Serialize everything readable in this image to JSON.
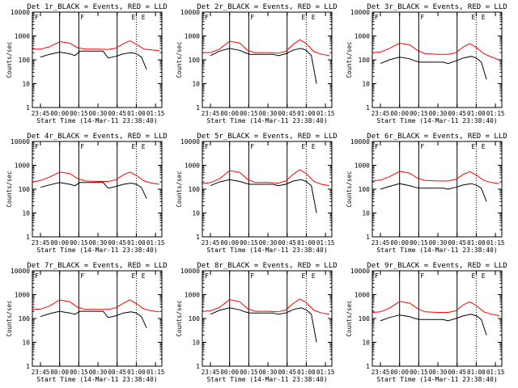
{
  "common": {
    "title_suffix": "_BLACK = Events, RED = LLD",
    "xlabel": "Start Time (14-Mar-11 23:38:40)",
    "ylabel": "Counts/sec",
    "x_ticks": [
      "23:45",
      "00:00",
      "00:15",
      "00:30",
      "00:45",
      "01:00",
      "01:15"
    ],
    "y_ticks": [
      "1",
      "10",
      "100",
      "1000",
      "10000"
    ],
    "marker_letters": [
      "F",
      "E"
    ],
    "colors": {
      "events": "#000000",
      "lld": "#ff0000"
    }
  },
  "chart_data": [
    {
      "type": "line",
      "title": "Det 1r_BLACK = Events, RED = LLD",
      "xlabel": "Start Time (14-Mar-11 23:38:40)",
      "ylabel": "Counts/sec",
      "xlim": [
        "23:38:40",
        "01:20:00"
      ],
      "ylim": [
        1,
        10000
      ],
      "yscale": "log",
      "series": [
        {
          "key": "events",
          "x": [
            "23:45",
            "23:52",
            "00:00",
            "00:08",
            "00:12",
            "00:16",
            "00:20",
            "00:30",
            "00:34",
            "00:38",
            "00:44",
            "00:50",
            "00:56",
            "01:00",
            "01:04",
            "01:08"
          ],
          "values": [
            130,
            170,
            210,
            180,
            150,
            230,
            230,
            230,
            230,
            120,
            140,
            180,
            200,
            180,
            130,
            40
          ]
        },
        {
          "key": "lld",
          "x": [
            "23:39",
            "23:45",
            "23:52",
            "00:00",
            "00:08",
            "00:14",
            "00:20",
            "00:30",
            "00:38",
            "00:44",
            "00:50",
            "00:55",
            "01:00",
            "01:06",
            "01:12",
            "01:18"
          ],
          "values": [
            280,
            280,
            350,
            580,
            500,
            320,
            280,
            280,
            270,
            310,
            480,
            620,
            450,
            280,
            260,
            240
          ]
        }
      ]
    },
    {
      "type": "line",
      "title": "Det 2r_BLACK = Events, RED = LLD",
      "xlabel": "Start Time (14-Mar-11 23:38:40)",
      "ylabel": "Counts/sec",
      "xlim": [
        "23:38:40",
        "01:20:00"
      ],
      "ylim": [
        1,
        10000
      ],
      "yscale": "log",
      "series": [
        {
          "key": "events",
          "x": [
            "23:45",
            "23:52",
            "00:00",
            "00:08",
            "00:12",
            "00:16",
            "00:20",
            "00:30",
            "00:34",
            "00:38",
            "00:44",
            "00:50",
            "00:56",
            "01:00",
            "01:04",
            "01:08"
          ],
          "values": [
            150,
            230,
            300,
            250,
            200,
            170,
            170,
            170,
            170,
            150,
            180,
            260,
            300,
            250,
            150,
            10
          ]
        },
        {
          "key": "lld",
          "x": [
            "23:39",
            "23:45",
            "23:52",
            "00:00",
            "00:08",
            "00:14",
            "00:20",
            "00:30",
            "00:38",
            "00:44",
            "00:50",
            "00:55",
            "01:00",
            "01:06",
            "01:12",
            "01:18"
          ],
          "values": [
            200,
            200,
            280,
            600,
            500,
            250,
            200,
            200,
            190,
            230,
            450,
            700,
            480,
            220,
            170,
            150
          ]
        }
      ]
    },
    {
      "type": "line",
      "title": "Det 3r_BLACK = Events, RED = LLD",
      "xlabel": "Start Time (14-Mar-11 23:38:40)",
      "ylabel": "Counts/sec",
      "xlim": [
        "23:38:40",
        "01:20:00"
      ],
      "ylim": [
        1,
        10000
      ],
      "yscale": "log",
      "series": [
        {
          "key": "events",
          "x": [
            "23:45",
            "23:52",
            "00:00",
            "00:08",
            "00:12",
            "00:16",
            "00:20",
            "00:30",
            "00:34",
            "00:38",
            "00:44",
            "00:50",
            "00:56",
            "01:00",
            "01:04",
            "01:08"
          ],
          "values": [
            70,
            100,
            130,
            110,
            90,
            80,
            80,
            80,
            80,
            70,
            90,
            120,
            140,
            120,
            80,
            15
          ]
        },
        {
          "key": "lld",
          "x": [
            "23:39",
            "23:45",
            "23:52",
            "00:00",
            "00:08",
            "00:14",
            "00:20",
            "00:30",
            "00:38",
            "00:44",
            "00:50",
            "00:55",
            "01:00",
            "01:06",
            "01:12",
            "01:18"
          ],
          "values": [
            200,
            210,
            300,
            500,
            420,
            250,
            180,
            170,
            170,
            200,
            350,
            480,
            330,
            180,
            130,
            100
          ]
        }
      ]
    },
    {
      "type": "line",
      "title": "Det 4r_BLACK = Events, RED = LLD",
      "xlabel": "Start Time (14-Mar-11 23:38:40)",
      "ylabel": "Counts/sec",
      "xlim": [
        "23:38:40",
        "01:20:00"
      ],
      "ylim": [
        1,
        10000
      ],
      "yscale": "log",
      "series": [
        {
          "key": "events",
          "x": [
            "23:45",
            "23:52",
            "00:00",
            "00:08",
            "00:12",
            "00:16",
            "00:20",
            "00:30",
            "00:34",
            "00:38",
            "00:44",
            "00:50",
            "00:56",
            "01:00",
            "01:04",
            "01:08"
          ],
          "values": [
            120,
            150,
            190,
            160,
            140,
            190,
            190,
            190,
            190,
            110,
            130,
            160,
            180,
            160,
            120,
            40
          ]
        },
        {
          "key": "lld",
          "x": [
            "23:39",
            "23:45",
            "23:52",
            "00:00",
            "00:08",
            "00:14",
            "00:20",
            "00:30",
            "00:38",
            "00:44",
            "00:50",
            "00:55",
            "01:00",
            "01:06",
            "01:12",
            "01:18"
          ],
          "values": [
            200,
            230,
            320,
            520,
            450,
            280,
            220,
            210,
            210,
            250,
            400,
            520,
            380,
            220,
            180,
            160
          ]
        }
      ]
    },
    {
      "type": "line",
      "title": "Det 5r_BLACK = Events, RED = LLD",
      "xlabel": "Start Time (14-Mar-11 23:38:40)",
      "ylabel": "Counts/sec",
      "xlim": [
        "23:38:40",
        "01:20:00"
      ],
      "ylim": [
        1,
        10000
      ],
      "yscale": "log",
      "series": [
        {
          "key": "events",
          "x": [
            "23:45",
            "23:52",
            "00:00",
            "00:08",
            "00:12",
            "00:16",
            "00:20",
            "00:30",
            "00:34",
            "00:38",
            "00:44",
            "00:50",
            "00:56",
            "01:00",
            "01:04",
            "01:08"
          ],
          "values": [
            140,
            200,
            250,
            210,
            180,
            160,
            160,
            160,
            160,
            140,
            160,
            220,
            250,
            210,
            140,
            10
          ]
        },
        {
          "key": "lld",
          "x": [
            "23:39",
            "23:45",
            "23:52",
            "00:00",
            "00:08",
            "00:14",
            "00:20",
            "00:30",
            "00:38",
            "00:44",
            "00:50",
            "00:55",
            "01:00",
            "01:06",
            "01:12",
            "01:18"
          ],
          "values": [
            170,
            190,
            270,
            600,
            500,
            260,
            190,
            190,
            180,
            220,
            430,
            650,
            450,
            210,
            160,
            140
          ]
        }
      ]
    },
    {
      "type": "line",
      "title": "Det 6r_BLACK = Events, RED = LLD",
      "xlabel": "Start Time (14-Mar-11 23:38:40)",
      "ylabel": "Counts/sec",
      "xlim": [
        "23:38:40",
        "01:20:00"
      ],
      "ylim": [
        1,
        10000
      ],
      "yscale": "log",
      "series": [
        {
          "key": "events",
          "x": [
            "23:45",
            "23:52",
            "00:00",
            "00:08",
            "00:12",
            "00:16",
            "00:20",
            "00:30",
            "00:34",
            "00:38",
            "00:44",
            "00:50",
            "00:56",
            "01:00",
            "01:04",
            "01:08"
          ],
          "values": [
            100,
            130,
            170,
            140,
            120,
            110,
            110,
            110,
            110,
            100,
            120,
            150,
            170,
            150,
            110,
            30
          ]
        },
        {
          "key": "lld",
          "x": [
            "23:39",
            "23:45",
            "23:52",
            "00:00",
            "00:08",
            "00:14",
            "00:20",
            "00:30",
            "00:38",
            "00:44",
            "00:50",
            "00:55",
            "01:00",
            "01:06",
            "01:12",
            "01:18"
          ],
          "values": [
            220,
            240,
            330,
            560,
            470,
            290,
            230,
            220,
            220,
            260,
            420,
            540,
            390,
            230,
            190,
            170
          ]
        }
      ]
    },
    {
      "type": "line",
      "title": "Det 7r_BLACK = Events, RED = LLD",
      "xlabel": "Start Time (14-Mar-11 23:38:40)",
      "ylabel": "Counts/sec",
      "xlim": [
        "23:38:40",
        "01:20:00"
      ],
      "ylim": [
        1,
        10000
      ],
      "yscale": "log",
      "series": [
        {
          "key": "events",
          "x": [
            "23:45",
            "23:52",
            "00:00",
            "00:08",
            "00:12",
            "00:16",
            "00:20",
            "00:30",
            "00:34",
            "00:38",
            "00:44",
            "00:50",
            "00:56",
            "01:00",
            "01:04",
            "01:08"
          ],
          "values": [
            120,
            160,
            200,
            170,
            150,
            200,
            200,
            200,
            200,
            110,
            130,
            170,
            190,
            170,
            120,
            40
          ]
        },
        {
          "key": "lld",
          "x": [
            "23:39",
            "23:45",
            "23:52",
            "00:00",
            "00:08",
            "00:14",
            "00:20",
            "00:30",
            "00:38",
            "00:44",
            "00:50",
            "00:55",
            "01:00",
            "01:06",
            "01:12",
            "01:18"
          ],
          "values": [
            240,
            250,
            330,
            600,
            500,
            300,
            240,
            240,
            240,
            280,
            440,
            600,
            420,
            250,
            210,
            190
          ]
        }
      ]
    },
    {
      "type": "line",
      "title": "Det 8r_BLACK = Events, RED = LLD",
      "xlabel": "Start Time (14-Mar-11 23:38:40)",
      "ylabel": "Counts/sec",
      "xlim": [
        "23:38:40",
        "01:20:00"
      ],
      "ylim": [
        1,
        10000
      ],
      "yscale": "log",
      "series": [
        {
          "key": "events",
          "x": [
            "23:45",
            "23:52",
            "00:00",
            "00:08",
            "00:12",
            "00:16",
            "00:20",
            "00:30",
            "00:34",
            "00:38",
            "00:44",
            "00:50",
            "00:56",
            "01:00",
            "01:04",
            "01:08"
          ],
          "values": [
            150,
            220,
            280,
            230,
            190,
            170,
            170,
            170,
            170,
            150,
            170,
            240,
            280,
            230,
            150,
            10
          ]
        },
        {
          "key": "lld",
          "x": [
            "23:39",
            "23:45",
            "23:52",
            "00:00",
            "00:08",
            "00:14",
            "00:20",
            "00:30",
            "00:38",
            "00:44",
            "00:50",
            "00:55",
            "01:00",
            "01:06",
            "01:12",
            "01:18"
          ],
          "values": [
            200,
            210,
            290,
            620,
            500,
            260,
            200,
            200,
            190,
            230,
            440,
            650,
            460,
            220,
            170,
            150
          ]
        }
      ]
    },
    {
      "type": "line",
      "title": "Det 9r_BLACK = Events, RED = LLD",
      "xlabel": "Start Time (14-Mar-11 23:38:40)",
      "ylabel": "Counts/sec",
      "xlim": [
        "23:38:40",
        "01:20:00"
      ],
      "ylim": [
        1,
        10000
      ],
      "yscale": "log",
      "series": [
        {
          "key": "events",
          "x": [
            "23:45",
            "23:52",
            "00:00",
            "00:08",
            "00:12",
            "00:16",
            "00:20",
            "00:30",
            "00:34",
            "00:38",
            "00:44",
            "00:50",
            "00:56",
            "01:00",
            "01:04",
            "01:08"
          ],
          "values": [
            80,
            110,
            140,
            120,
            100,
            90,
            90,
            90,
            90,
            80,
            100,
            130,
            150,
            130,
            90,
            20
          ]
        },
        {
          "key": "lld",
          "x": [
            "23:39",
            "23:45",
            "23:52",
            "00:00",
            "00:08",
            "00:14",
            "00:20",
            "00:30",
            "00:38",
            "00:44",
            "00:50",
            "00:55",
            "01:00",
            "01:06",
            "01:12",
            "01:18"
          ],
          "values": [
            180,
            190,
            270,
            520,
            440,
            260,
            190,
            180,
            180,
            210,
            380,
            500,
            350,
            190,
            150,
            130
          ]
        }
      ]
    }
  ]
}
